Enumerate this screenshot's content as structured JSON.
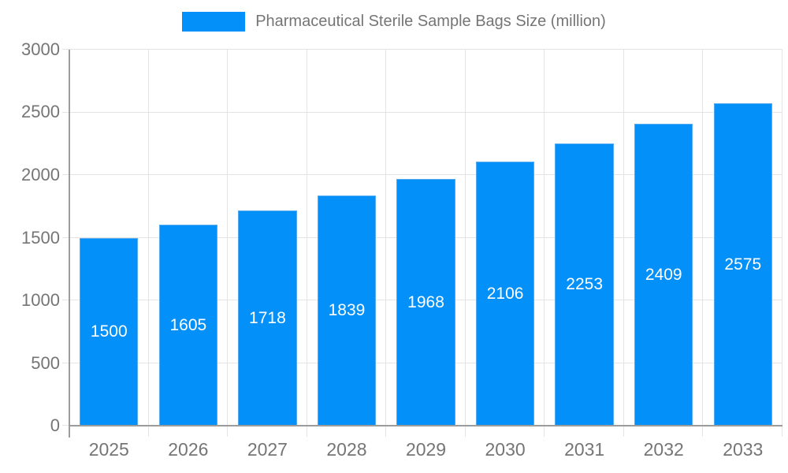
{
  "chart_data": {
    "type": "bar",
    "title": "Pharmaceutical Sterile Sample Bags Size (million)",
    "categories": [
      "2025",
      "2026",
      "2027",
      "2028",
      "2029",
      "2030",
      "2031",
      "2032",
      "2033"
    ],
    "values": [
      1500,
      1605,
      1718,
      1839,
      1968,
      2106,
      2253,
      2409,
      2575
    ],
    "xlabel": "",
    "ylabel": "",
    "ylim": [
      0,
      3000
    ],
    "yticks": [
      0,
      500,
      1000,
      1500,
      2000,
      2500,
      3000
    ],
    "grid": true,
    "legend_position": "top-center",
    "colors": {
      "bar": "#0490f9",
      "bar_value_label": "#ffffff",
      "axis_text": "#757575",
      "grid_line": "#e4e4e4",
      "axis_line": "#9c9c9c",
      "background": "#ffffff"
    }
  }
}
